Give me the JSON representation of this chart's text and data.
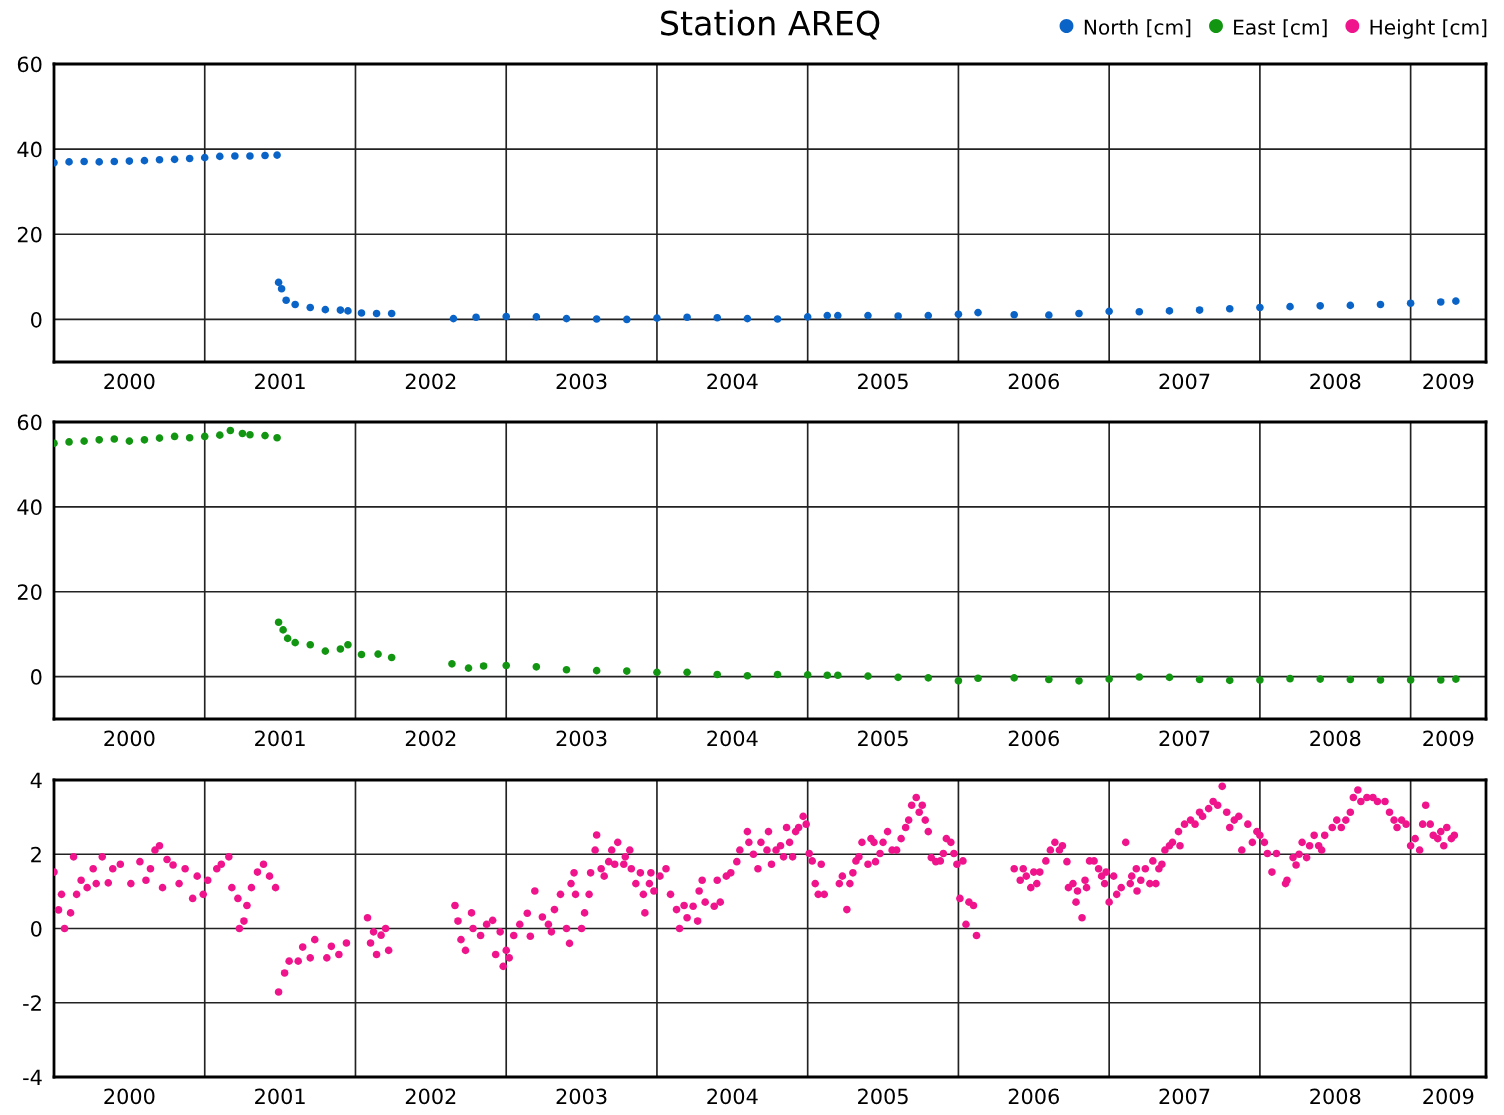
{
  "chart_data": [
    {
      "type": "scatter",
      "title": "Station AREQ",
      "xlim": [
        2000,
        2009.5
      ],
      "ylim": [
        -10,
        60
      ],
      "yticks": [
        0,
        20,
        40,
        60
      ],
      "grid": true,
      "legend": "top right",
      "marker": "circle",
      "xticks": [
        {
          "value": 2000.5,
          "label": "2000"
        },
        {
          "value": 2001,
          "label": null
        },
        {
          "value": 2001.5,
          "label": "2001"
        },
        {
          "value": 2002,
          "label": null
        },
        {
          "value": 2002.5,
          "label": "2002"
        },
        {
          "value": 2003,
          "label": null
        },
        {
          "value": 2003.5,
          "label": "2003"
        },
        {
          "value": 2004,
          "label": null
        },
        {
          "value": 2004.5,
          "label": "2004"
        },
        {
          "value": 2005,
          "label": null
        },
        {
          "value": 2005.5,
          "label": "2005"
        },
        {
          "value": 2006,
          "label": null
        },
        {
          "value": 2006.5,
          "label": "2006"
        },
        {
          "value": 2007,
          "label": null
        },
        {
          "value": 2007.5,
          "label": "2007"
        },
        {
          "value": 2008,
          "label": null
        },
        {
          "value": 2008.5,
          "label": "2008"
        },
        {
          "value": 2009,
          "label": null
        },
        {
          "value": 2009.25,
          "label": "2009"
        }
      ],
      "series": [
        {
          "name": "North [cm]",
          "color": "#0a64c8",
          "x": [
            2000.0,
            2000.1,
            2000.2,
            2000.3,
            2000.4,
            2000.5,
            2000.6,
            2000.7,
            2000.8,
            2000.9,
            2001.0,
            2001.1,
            2001.2,
            2001.3,
            2001.4,
            2001.48,
            2001.49,
            2001.51,
            2001.54,
            2001.6,
            2001.7,
            2001.8,
            2001.9,
            2001.95,
            2002.04,
            2002.14,
            2002.24,
            2002.65,
            2002.8,
            2003.0,
            2003.2,
            2003.4,
            2003.6,
            2003.8,
            2004.0,
            2004.2,
            2004.4,
            2004.6,
            2004.8,
            2005.0,
            2005.13,
            2005.2,
            2005.4,
            2005.6,
            2005.8,
            2006.0,
            2006.13,
            2006.37,
            2006.6,
            2006.8,
            2007.0,
            2007.2,
            2007.4,
            2007.6,
            2007.8,
            2008.0,
            2008.2,
            2008.4,
            2008.6,
            2008.8,
            2009.0,
            2009.2,
            2009.3
          ],
          "values": [
            36.8,
            37.0,
            37.1,
            37.0,
            37.1,
            37.2,
            37.3,
            37.5,
            37.6,
            37.8,
            38.0,
            38.3,
            38.4,
            38.4,
            38.5,
            38.6,
            8.7,
            7.2,
            4.5,
            3.5,
            2.8,
            2.3,
            2.2,
            2.0,
            1.5,
            1.4,
            1.4,
            0.2,
            0.5,
            0.7,
            0.6,
            0.2,
            0.1,
            0.0,
            0.3,
            0.5,
            0.4,
            0.2,
            0.1,
            0.6,
            0.9,
            0.9,
            0.9,
            0.8,
            0.9,
            1.2,
            1.6,
            1.1,
            1.0,
            1.4,
            1.9,
            1.8,
            2.0,
            2.2,
            2.5,
            2.8,
            3.0,
            3.2,
            3.3,
            3.5,
            3.8,
            4.1,
            4.3
          ]
        }
      ]
    },
    {
      "type": "scatter",
      "xlim": [
        2000,
        2009.5
      ],
      "ylim": [
        -10,
        60
      ],
      "yticks": [
        0,
        20,
        40,
        60
      ],
      "grid": true,
      "legend": "top right",
      "marker": "circle",
      "xticks": [
        {
          "value": 2000.5,
          "label": "2000"
        },
        {
          "value": 2001,
          "label": null
        },
        {
          "value": 2001.5,
          "label": "2001"
        },
        {
          "value": 2002,
          "label": null
        },
        {
          "value": 2002.5,
          "label": "2002"
        },
        {
          "value": 2003,
          "label": null
        },
        {
          "value": 2003.5,
          "label": "2003"
        },
        {
          "value": 2004,
          "label": null
        },
        {
          "value": 2004.5,
          "label": "2004"
        },
        {
          "value": 2005,
          "label": null
        },
        {
          "value": 2005.5,
          "label": "2005"
        },
        {
          "value": 2006,
          "label": null
        },
        {
          "value": 2006.5,
          "label": "2006"
        },
        {
          "value": 2007,
          "label": null
        },
        {
          "value": 2007.5,
          "label": "2007"
        },
        {
          "value": 2008,
          "label": null
        },
        {
          "value": 2008.5,
          "label": "2008"
        },
        {
          "value": 2009,
          "label": null
        },
        {
          "value": 2009.25,
          "label": "2009"
        }
      ],
      "series": [
        {
          "name": "East [cm]",
          "color": "#129612",
          "x": [
            2000.0,
            2000.1,
            2000.2,
            2000.3,
            2000.4,
            2000.5,
            2000.6,
            2000.7,
            2000.8,
            2000.9,
            2001.0,
            2001.1,
            2001.17,
            2001.25,
            2001.3,
            2001.4,
            2001.48,
            2001.49,
            2001.52,
            2001.55,
            2001.6,
            2001.7,
            2001.8,
            2001.9,
            2001.95,
            2002.04,
            2002.15,
            2002.24,
            2002.64,
            2002.75,
            2002.85,
            2003.0,
            2003.2,
            2003.4,
            2003.6,
            2003.8,
            2004.0,
            2004.2,
            2004.4,
            2004.6,
            2004.8,
            2005.0,
            2005.13,
            2005.2,
            2005.4,
            2005.6,
            2005.8,
            2006.0,
            2006.13,
            2006.37,
            2006.6,
            2006.8,
            2007.0,
            2007.2,
            2007.4,
            2007.6,
            2007.8,
            2008.0,
            2008.2,
            2008.4,
            2008.6,
            2008.8,
            2009.0,
            2009.2,
            2009.3
          ],
          "values": [
            55.0,
            55.3,
            55.5,
            55.8,
            56.0,
            55.5,
            55.8,
            56.2,
            56.6,
            56.3,
            56.6,
            56.9,
            58.0,
            57.3,
            57.0,
            56.8,
            56.3,
            12.8,
            11.0,
            9.0,
            8.0,
            7.5,
            6.0,
            6.5,
            7.5,
            5.2,
            5.3,
            4.5,
            3.0,
            2.0,
            2.5,
            2.6,
            2.3,
            1.6,
            1.4,
            1.3,
            1.0,
            1.0,
            0.5,
            0.2,
            0.5,
            0.4,
            0.3,
            0.3,
            0.1,
            -0.2,
            -0.3,
            -1.0,
            -0.4,
            -0.3,
            -0.7,
            -1.0,
            -0.6,
            -0.1,
            -0.2,
            -0.7,
            -0.9,
            -0.8,
            -0.5,
            -0.6,
            -0.7,
            -0.8,
            -0.8,
            -0.8,
            -0.6
          ]
        }
      ]
    },
    {
      "type": "scatter",
      "xlim": [
        2000,
        2009.5
      ],
      "ylim": [
        -4,
        4
      ],
      "yticks": [
        -4,
        -2,
        0,
        2,
        4
      ],
      "grid": true,
      "legend": "top right",
      "marker": "circle",
      "xticks": [
        {
          "value": 2000.5,
          "label": "2000"
        },
        {
          "value": 2001,
          "label": null
        },
        {
          "value": 2001.5,
          "label": "2001"
        },
        {
          "value": 2002,
          "label": null
        },
        {
          "value": 2002.5,
          "label": "2002"
        },
        {
          "value": 2003,
          "label": null
        },
        {
          "value": 2003.5,
          "label": "2003"
        },
        {
          "value": 2004,
          "label": null
        },
        {
          "value": 2004.5,
          "label": "2004"
        },
        {
          "value": 2005,
          "label": null
        },
        {
          "value": 2005.5,
          "label": "2005"
        },
        {
          "value": 2006,
          "label": null
        },
        {
          "value": 2006.5,
          "label": "2006"
        },
        {
          "value": 2007,
          "label": null
        },
        {
          "value": 2007.5,
          "label": "2007"
        },
        {
          "value": 2008,
          "label": null
        },
        {
          "value": 2008.5,
          "label": "2008"
        },
        {
          "value": 2009,
          "label": null
        },
        {
          "value": 2009.25,
          "label": "2009"
        }
      ],
      "series": [
        {
          "name": "Height [cm]",
          "color": "#f0148c",
          "x": [
            2000.0,
            2000.03,
            2000.05,
            2000.07,
            2000.11,
            2000.13,
            2000.15,
            2000.18,
            2000.22,
            2000.26,
            2000.28,
            2000.32,
            2000.36,
            2000.39,
            2000.44,
            2000.51,
            2000.57,
            2000.61,
            2000.64,
            2000.67,
            2000.7,
            2000.72,
            2000.75,
            2000.79,
            2000.83,
            2000.87,
            2000.92,
            2000.95,
            2000.99,
            2001.02,
            2001.08,
            2001.11,
            2001.16,
            2001.18,
            2001.22,
            2001.23,
            2001.26,
            2001.28,
            2001.31,
            2001.35,
            2001.39,
            2001.43,
            2001.47,
            2001.49,
            2001.53,
            2001.56,
            2001.62,
            2001.65,
            2001.7,
            2001.73,
            2001.81,
            2001.84,
            2001.89,
            2001.94,
            2002.08,
            2002.1,
            2002.12,
            2002.14,
            2002.17,
            2002.2,
            2002.22,
            2002.66,
            2002.68,
            2002.7,
            2002.73,
            2002.77,
            2002.78,
            2002.83,
            2002.87,
            2002.91,
            2002.93,
            2002.96,
            2002.98,
            2003.0,
            2003.02,
            2003.05,
            2003.09,
            2003.14,
            2003.16,
            2003.19,
            2003.24,
            2003.28,
            2003.3,
            2003.32,
            2003.36,
            2003.4,
            2003.42,
            2003.43,
            2003.45,
            2003.46,
            2003.5,
            2003.52,
            2003.55,
            2003.56,
            2003.59,
            2003.6,
            2003.63,
            2003.65,
            2003.68,
            2003.7,
            2003.72,
            2003.74,
            2003.78,
            2003.79,
            2003.82,
            2003.83,
            2003.86,
            2003.89,
            2003.91,
            2003.92,
            2003.95,
            2003.96,
            2003.98,
            2004.02,
            2004.06,
            2004.09,
            2004.13,
            2004.15,
            2004.18,
            2004.2,
            2004.24,
            2004.27,
            2004.28,
            2004.3,
            2004.32,
            2004.38,
            2004.4,
            2004.42,
            2004.46,
            2004.49,
            2004.53,
            2004.55,
            2004.6,
            2004.61,
            2004.64,
            2004.67,
            2004.69,
            2004.73,
            2004.74,
            2004.76,
            2004.79,
            2004.82,
            2004.84,
            2004.86,
            2004.88,
            2004.9,
            2004.92,
            2004.94,
            2004.97,
            2004.99,
            2005.01,
            2005.03,
            2005.05,
            2005.07,
            2005.09,
            2005.11,
            2005.21,
            2005.23,
            2005.26,
            2005.28,
            2005.3,
            2005.32,
            2005.34,
            2005.36,
            2005.4,
            2005.42,
            2005.44,
            2005.45,
            2005.48,
            2005.5,
            2005.53,
            2005.56,
            2005.59,
            2005.62,
            2005.65,
            2005.67,
            2005.69,
            2005.72,
            2005.74,
            2005.76,
            2005.78,
            2005.8,
            2005.82,
            2005.85,
            2005.88,
            2005.9,
            2005.92,
            2005.95,
            2005.97,
            2005.99,
            2006.01,
            2006.03,
            2006.05,
            2006.07,
            2006.1,
            2006.12,
            2006.37,
            2006.41,
            2006.43,
            2006.45,
            2006.48,
            2006.5,
            2006.52,
            2006.54,
            2006.58,
            2006.61,
            2006.64,
            2006.67,
            2006.69,
            2006.72,
            2006.73,
            2006.76,
            2006.78,
            2006.79,
            2006.82,
            2006.84,
            2006.85,
            2006.87,
            2006.9,
            2006.93,
            2006.95,
            2006.97,
            2006.98,
            2007.0,
            2007.03,
            2007.05,
            2007.08,
            2007.11,
            2007.14,
            2007.15,
            2007.18,
            2007.185,
            2007.21,
            2007.24,
            2007.27,
            2007.29,
            2007.31,
            2007.33,
            2007.35,
            2007.37,
            2007.4,
            2007.42,
            2007.46,
            2007.47,
            2007.5,
            2007.54,
            2007.57,
            2007.6,
            2007.62,
            2007.66,
            2007.69,
            2007.72,
            2007.75,
            2007.78,
            2007.8,
            2007.83,
            2007.86,
            2007.88,
            2007.92,
            2007.95,
            2007.98,
            2008.0,
            2008.03,
            2008.05,
            2008.08,
            2008.11,
            2008.17,
            2008.18,
            2008.22,
            2008.24,
            2008.26,
            2008.28,
            2008.31,
            2008.33,
            2008.36,
            2008.39,
            2008.41,
            2008.43,
            2008.48,
            2008.51,
            2008.54,
            2008.57,
            2008.6,
            2008.62,
            2008.65,
            2008.67,
            2008.71,
            2008.75,
            2008.78,
            2008.83,
            2008.86,
            2008.89,
            2008.91,
            2008.94,
            2008.97,
            2009.0,
            2009.03,
            2009.06,
            2009.08,
            2009.1,
            2009.13,
            2009.15,
            2009.18,
            2009.2,
            2009.22,
            2009.24,
            2009.27,
            2009.29
          ],
          "values": [
            1.52,
            0.5,
            0.92,
            0.0,
            0.42,
            1.93,
            0.92,
            1.3,
            1.1,
            1.61,
            1.21,
            1.93,
            1.23,
            1.61,
            1.73,
            1.21,
            1.8,
            1.3,
            1.61,
            2.11,
            2.23,
            1.1,
            1.86,
            1.71,
            1.21,
            1.61,
            0.81,
            1.41,
            0.92,
            1.3,
            1.61,
            1.73,
            1.93,
            1.1,
            0.81,
            0.0,
            0.2,
            0.62,
            1.1,
            1.52,
            1.73,
            1.41,
            1.1,
            -1.71,
            -1.2,
            -0.88,
            -0.88,
            -0.5,
            -0.79,
            -0.3,
            -0.79,
            -0.48,
            -0.7,
            -0.39,
            0.29,
            -0.39,
            -0.09,
            -0.7,
            -0.18,
            0.0,
            -0.59,
            0.62,
            0.2,
            -0.3,
            -0.59,
            0.42,
            0.0,
            -0.19,
            0.11,
            0.22,
            -0.7,
            -0.09,
            -1.02,
            -0.59,
            -0.79,
            -0.19,
            0.11,
            0.41,
            -0.21,
            1.01,
            0.31,
            0.11,
            -0.09,
            0.51,
            0.92,
            0.0,
            -0.4,
            1.21,
            1.5,
            0.92,
            0.0,
            0.42,
            0.92,
            1.5,
            2.11,
            2.52,
            1.61,
            1.41,
            1.8,
            2.11,
            1.73,
            2.32,
            1.73,
            1.93,
            2.11,
            1.61,
            1.21,
            1.5,
            0.92,
            0.42,
            1.21,
            1.5,
            1.01,
            1.41,
            1.61,
            0.92,
            0.51,
            0.0,
            0.62,
            0.29,
            0.6,
            0.2,
            1.01,
            1.3,
            0.71,
            0.6,
            1.3,
            0.71,
            1.41,
            1.5,
            1.8,
            2.11,
            2.61,
            2.32,
            2.0,
            1.61,
            2.32,
            2.11,
            2.61,
            1.73,
            2.11,
            2.23,
            1.93,
            2.72,
            2.32,
            1.93,
            2.61,
            2.72,
            3.02,
            2.81,
            2.02,
            1.82,
            1.21,
            0.92,
            1.73,
            0.92,
            1.21,
            1.41,
            0.51,
            1.21,
            1.5,
            1.82,
            1.93,
            2.32,
            1.73,
            2.42,
            2.32,
            1.8,
            2.02,
            2.32,
            2.61,
            2.11,
            2.11,
            2.42,
            2.72,
            2.92,
            3.32,
            3.53,
            3.13,
            3.32,
            2.92,
            2.61,
            1.91,
            1.8,
            1.82,
            2.02,
            2.42,
            2.32,
            2.02,
            1.73,
            0.81,
            1.82,
            0.11,
            0.71,
            0.62,
            -0.19,
            1.61,
            1.3,
            1.61,
            1.41,
            1.1,
            1.52,
            1.21,
            1.52,
            1.82,
            2.11,
            2.32,
            2.11,
            2.23,
            1.8,
            1.1,
            1.21,
            0.71,
            1.01,
            0.29,
            1.3,
            1.1,
            1.82,
            1.82,
            1.61,
            1.41,
            1.21,
            1.52,
            0.71,
            1.41,
            0.92,
            1.1,
            2.32,
            1.21,
            1.41,
            1.61,
            1.01,
            1.3,
            1.61,
            1.21,
            1.82,
            1.21,
            1.61,
            1.73,
            2.11,
            2.23,
            2.32,
            2.61,
            2.23,
            2.81,
            2.92,
            2.81,
            3.13,
            3.02,
            3.23,
            3.42,
            3.32,
            3.83,
            3.13,
            2.72,
            2.92,
            3.02,
            2.11,
            2.81,
            2.32,
            2.61,
            2.51,
            2.32,
            2.02,
            1.52,
            2.02,
            1.21,
            1.3,
            1.91,
            1.71,
            2.0,
            2.32,
            1.91,
            2.23,
            2.51,
            2.23,
            2.11,
            2.51,
            2.72,
            2.92,
            2.72,
            2.92,
            3.13,
            3.53,
            3.73,
            3.42,
            3.53,
            3.53,
            3.42,
            3.42,
            3.13,
            2.92,
            2.72,
            2.92,
            2.81,
            2.23,
            2.42,
            2.11,
            2.81,
            3.32,
            2.81,
            2.51,
            2.42,
            2.61,
            2.23,
            2.72,
            2.42,
            2.51
          ]
        }
      ]
    }
  ]
}
